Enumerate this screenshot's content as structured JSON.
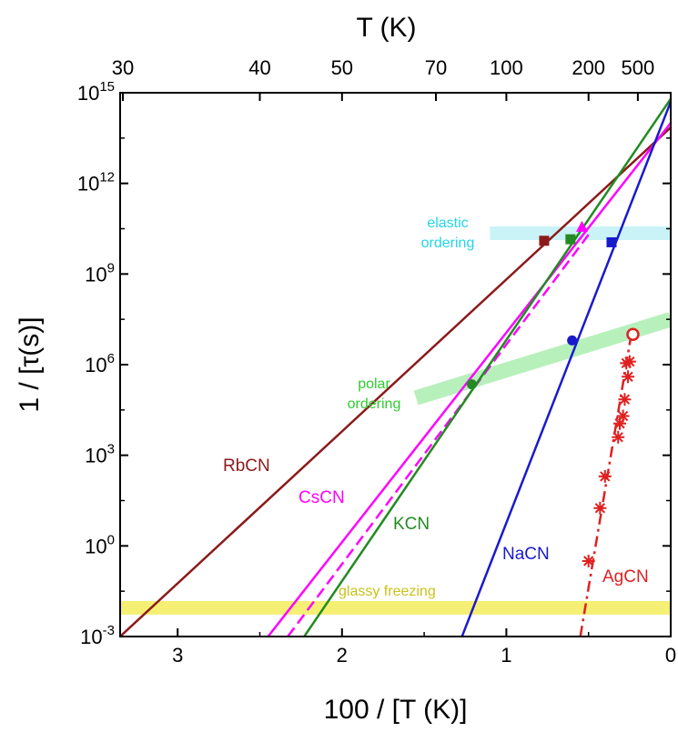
{
  "chart_data": {
    "type": "line",
    "xlabel": "100 / [T (K)]",
    "ylabel": "1 / [τ(s)]",
    "top_xlabel": "T (K)",
    "xlim": [
      3.35,
      0
    ],
    "ylim_log10": [
      -3,
      15
    ],
    "y_scale": "log",
    "bottom_ticks": [
      {
        "value": 3,
        "label": "3"
      },
      {
        "value": 2,
        "label": "2"
      },
      {
        "value": 1,
        "label": "1"
      },
      {
        "value": 0,
        "label": "0"
      }
    ],
    "top_ticks": [
      {
        "T": 30,
        "label": "30"
      },
      {
        "T": 40,
        "label": "40"
      },
      {
        "T": 50,
        "label": "50"
      },
      {
        "T": 70,
        "label": "70"
      },
      {
        "T": 100,
        "label": "100"
      },
      {
        "T": 200,
        "label": "200"
      },
      {
        "T": 500,
        "label": "500"
      }
    ],
    "y_ticks": [
      {
        "exp": -3,
        "label": "-3"
      },
      {
        "exp": 0,
        "label": "0"
      },
      {
        "exp": 3,
        "label": "3"
      },
      {
        "exp": 6,
        "label": "6"
      },
      {
        "exp": 9,
        "label": "9"
      },
      {
        "exp": 12,
        "label": "12"
      },
      {
        "exp": 15,
        "label": "15"
      }
    ],
    "y_tick_base": "10",
    "series": [
      {
        "name": "RbCN",
        "color": "#8b1a1a",
        "style": "solid",
        "line": [
          [
            3.35,
            -3.0
          ],
          [
            0.0,
            13.85
          ]
        ],
        "markers": [
          {
            "x": 0.77,
            "y": 10.1,
            "shape": "square"
          }
        ]
      },
      {
        "name": "CsCN",
        "color": "#ff00ff",
        "style": "solid",
        "line": [
          [
            2.45,
            -3.0
          ],
          [
            0.0,
            14.0
          ]
        ],
        "markers": []
      },
      {
        "name": "",
        "color": "#ff00ff",
        "style": "dashed",
        "line": [
          [
            2.33,
            -3.0
          ],
          [
            0.5,
            10.3
          ]
        ],
        "markers": [
          {
            "x": 0.54,
            "y": 10.55,
            "shape": "triangle"
          }
        ]
      },
      {
        "name": "KCN",
        "color": "#228b22",
        "style": "solid",
        "line": [
          [
            2.23,
            -3.0
          ],
          [
            0.0,
            14.8
          ]
        ],
        "markers": [
          {
            "x": 0.61,
            "y": 10.15,
            "shape": "square"
          },
          {
            "x": 1.21,
            "y": 5.35,
            "shape": "circle"
          }
        ]
      },
      {
        "name": "NaCN",
        "color": "#1a1acd",
        "style": "solid",
        "line": [
          [
            1.27,
            -3.0
          ],
          [
            0.0,
            14.7
          ]
        ],
        "markers": [
          {
            "x": 0.36,
            "y": 10.05,
            "shape": "square"
          },
          {
            "x": 0.6,
            "y": 6.8,
            "shape": "circle"
          }
        ]
      },
      {
        "name": "AgCN",
        "color": "#e02020",
        "style": "dashdot",
        "line": [
          [
            0.55,
            -3.0
          ],
          [
            0.24,
            7.0
          ]
        ],
        "markers": [
          {
            "x": 0.23,
            "y": 7.0,
            "shape": "open-circle"
          },
          {
            "x": 0.25,
            "y": 6.1,
            "shape": "star"
          },
          {
            "x": 0.27,
            "y": 6.05,
            "shape": "star"
          },
          {
            "x": 0.26,
            "y": 5.6,
            "shape": "star"
          },
          {
            "x": 0.28,
            "y": 4.85,
            "shape": "star"
          },
          {
            "x": 0.29,
            "y": 4.3,
            "shape": "star"
          },
          {
            "x": 0.31,
            "y": 4.05,
            "shape": "star"
          },
          {
            "x": 0.32,
            "y": 3.6,
            "shape": "star"
          },
          {
            "x": 0.4,
            "y": 2.3,
            "shape": "star"
          },
          {
            "x": 0.43,
            "y": 1.25,
            "shape": "star"
          },
          {
            "x": 0.5,
            "y": -0.5,
            "shape": "star"
          }
        ]
      }
    ],
    "bands": [
      {
        "label_lines": [
          "glassy freezing"
        ],
        "color": "#f5ef73",
        "from": [
          3.35,
          -2.05
        ],
        "to": [
          0.0,
          -2.05
        ],
        "thickness_dex": 0.45
      },
      {
        "label_lines": [
          "elastic",
          "ordering"
        ],
        "color": "#c9f3f7",
        "from": [
          1.1,
          10.35
        ],
        "to": [
          0.0,
          10.35
        ],
        "thickness_dex": 0.45
      },
      {
        "label_lines": [
          "polar",
          "ordering"
        ],
        "color": "#b8f0bc",
        "from": [
          1.55,
          4.9
        ],
        "to": [
          0.0,
          7.5
        ],
        "thickness_dex": 0.5
      }
    ]
  }
}
